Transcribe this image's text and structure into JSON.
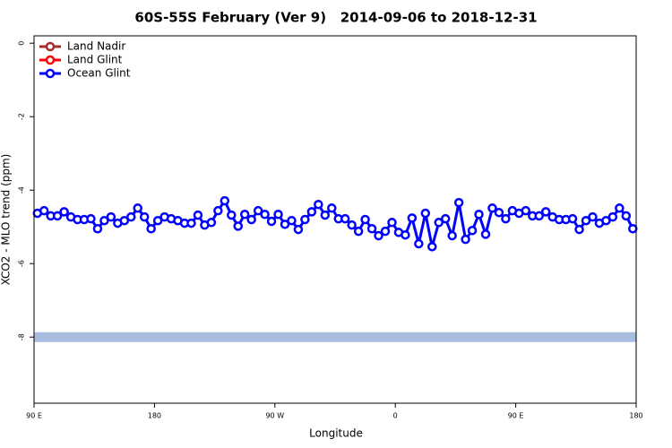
{
  "chart_data": {
    "type": "line",
    "title": "60S-55S February (Ver 9)   2014-09-06 to 2018-12-31",
    "xlabel": "Longitude",
    "ylabel": "XCO2 - MLO trend (ppm)",
    "xlim": [
      90,
      540
    ],
    "ylim": [
      -9.8,
      0.2
    ],
    "xticks": [
      {
        "value": 90,
        "label": "90 E"
      },
      {
        "value": 180,
        "label": "180"
      },
      {
        "value": 270,
        "label": "90 W"
      },
      {
        "value": 360,
        "label": "0"
      },
      {
        "value": 450,
        "label": "90 E"
      },
      {
        "value": 540,
        "label": "180"
      }
    ],
    "yticks": [
      0,
      -2,
      -4,
      -6,
      -8
    ],
    "grid": false,
    "legend": "top-left",
    "band": {
      "value": -8,
      "color": "#a8bde0"
    },
    "x": [
      92.5,
      97.5,
      102.5,
      107.5,
      112.5,
      117.5,
      122.5,
      127.5,
      132.5,
      137.5,
      142.5,
      147.5,
      152.5,
      157.5,
      162.5,
      167.5,
      172.5,
      177.5,
      182.5,
      187.5,
      192.5,
      197.5,
      202.5,
      207.5,
      212.5,
      217.5,
      222.5,
      227.5,
      232.5,
      237.5,
      242.5,
      247.5,
      252.5,
      257.5,
      262.5,
      267.5,
      272.5,
      277.5,
      282.5,
      287.5,
      292.5,
      297.5,
      302.5,
      307.5,
      312.5,
      317.5,
      322.5,
      327.5,
      332.5,
      337.5,
      342.5,
      347.5,
      352.5,
      357.5,
      362.5,
      367.5,
      372.5,
      377.5,
      382.5,
      387.5,
      392.5,
      397.5,
      402.5,
      407.5,
      412.5,
      417.5,
      422.5,
      427.5,
      432.5,
      437.5,
      442.5,
      447.5,
      452.5,
      457.5,
      462.5,
      467.5,
      472.5,
      477.5,
      482.5,
      487.5,
      492.5,
      497.5,
      502.5,
      507.5,
      512.5,
      517.5,
      522.5,
      527.5,
      532.5,
      537.5
    ],
    "series": [
      {
        "name": "Land Nadir",
        "color": "#a52a2a"
      },
      {
        "name": "Land Glint",
        "color": "#ff0000"
      },
      {
        "name": "Ocean Glint",
        "color": "#0000ff",
        "values": [
          -4.63,
          -4.56,
          -4.7,
          -4.7,
          -4.59,
          -4.73,
          -4.8,
          -4.8,
          -4.78,
          -5.05,
          -4.83,
          -4.73,
          -4.9,
          -4.83,
          -4.73,
          -4.49,
          -4.73,
          -5.05,
          -4.83,
          -4.73,
          -4.78,
          -4.83,
          -4.9,
          -4.9,
          -4.68,
          -4.95,
          -4.88,
          -4.56,
          -4.29,
          -4.68,
          -4.98,
          -4.66,
          -4.8,
          -4.56,
          -4.66,
          -4.85,
          -4.66,
          -4.93,
          -4.83,
          -5.07,
          -4.8,
          -4.59,
          -4.39,
          -4.68,
          -4.49,
          -4.78,
          -4.78,
          -4.95,
          -5.12,
          -4.8,
          -5.05,
          -5.24,
          -5.12,
          -4.88,
          -5.15,
          -5.22,
          -4.76,
          -5.46,
          -4.63,
          -5.54,
          -4.88,
          -4.78,
          -5.24,
          -4.34,
          -5.34,
          -5.1,
          -4.66,
          -5.2,
          -4.49,
          -4.61,
          -4.78,
          -4.56,
          -4.63,
          -4.56,
          -4.7,
          -4.7,
          -4.59,
          -4.73,
          -4.8,
          -4.8,
          -4.78,
          -5.07,
          -4.83,
          -4.73,
          -4.9,
          -4.83,
          -4.73,
          -4.49,
          -4.7,
          -5.05
        ]
      }
    ]
  }
}
